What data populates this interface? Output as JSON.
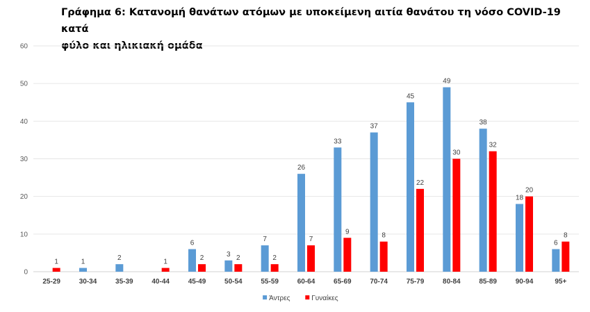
{
  "title_line1": "Γράφημα 6: Κατανομή θανάτων ατόμων με υποκείμενη αιτία θανάτου τη νόσο COVID-19 κατά",
  "title_line2": "φύλο και ηλικιακή ομάδα",
  "chart_data": {
    "type": "bar",
    "title": "Γράφημα 6: Κατανομή θανάτων ατόμων με υποκείμενη αιτία θανάτου τη νόσο COVID-19 κατά φύλο και ηλικιακή ομάδα",
    "xlabel": "",
    "ylabel": "",
    "ylim": [
      0,
      60
    ],
    "yticks": [
      0,
      10,
      20,
      30,
      40,
      50,
      60
    ],
    "grid": true,
    "legend_position": "bottom",
    "categories": [
      "25-29",
      "30-34",
      "35-39",
      "40-44",
      "45-49",
      "50-54",
      "55-59",
      "60-64",
      "65-69",
      "70-74",
      "75-79",
      "80-84",
      "85-89",
      "90-94",
      "95+"
    ],
    "series": [
      {
        "name": "Άντρες",
        "color": "#5B9BD5",
        "values": [
          null,
          1,
          2,
          null,
          6,
          3,
          7,
          26,
          33,
          37,
          45,
          49,
          38,
          18,
          6
        ]
      },
      {
        "name": "Γυναίκες",
        "color": "#FF0000",
        "values": [
          1,
          null,
          null,
          1,
          2,
          2,
          2,
          7,
          9,
          8,
          22,
          30,
          32,
          20,
          8
        ]
      }
    ]
  }
}
